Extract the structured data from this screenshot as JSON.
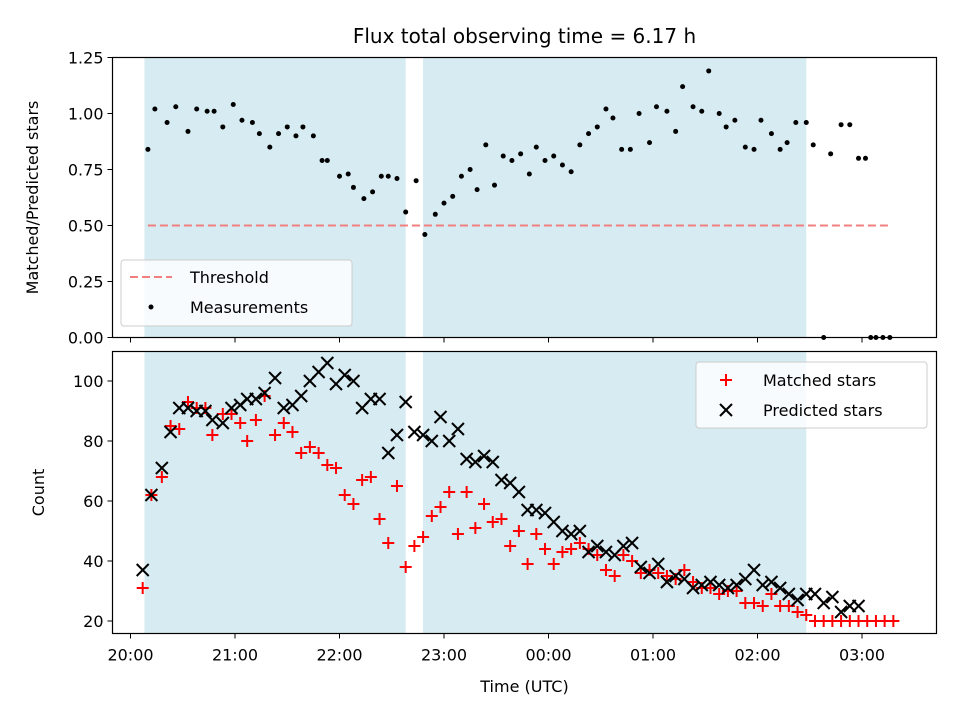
{
  "title": "Flux total observing time = 6.17 h",
  "chart_data": [
    {
      "type": "scatter",
      "ylabel": "Matched/Predicted stars",
      "ylim": [
        0,
        1.25
      ],
      "yticks": [
        "0.00",
        "0.25",
        "0.50",
        "0.75",
        "1.00",
        "1.25"
      ],
      "threshold": 0.5,
      "shaded_intervals": [
        [
          "20:08",
          "22:38"
        ],
        [
          "22:48",
          "02:28"
        ]
      ],
      "legend": {
        "position": "lower-left",
        "threshold_label": "Threshold",
        "measurements_label": "Measurements"
      },
      "series": [
        {
          "name": "Measurements",
          "x": [
            "20:10",
            "20:14",
            "20:21",
            "20:26",
            "20:33",
            "20:38",
            "20:44",
            "20:48",
            "20:53",
            "20:59",
            "21:04",
            "21:10",
            "21:14",
            "21:20",
            "21:25",
            "21:30",
            "21:35",
            "21:39",
            "21:45",
            "21:50",
            "21:53",
            "22:00",
            "22:05",
            "22:08",
            "22:14",
            "22:19",
            "22:24",
            "22:28",
            "22:33",
            "22:38",
            "22:44",
            "22:49",
            "22:55",
            "23:00",
            "23:05",
            "23:10",
            "23:15",
            "23:19",
            "23:24",
            "23:29",
            "23:34",
            "23:39",
            "23:44",
            "23:49",
            "23:53",
            "23:58",
            "24:03",
            "24:08",
            "24:13",
            "24:18",
            "24:23",
            "24:28",
            "24:33",
            "24:37",
            "24:42",
            "24:47",
            "24:52",
            "24:58",
            "25:02",
            "25:08",
            "25:13",
            "25:17",
            "25:23",
            "25:28",
            "25:32",
            "25:38",
            "25:42",
            "25:47",
            "25:53",
            "25:58",
            "26:02",
            "26:08",
            "26:13",
            "26:17",
            "26:22",
            "26:28",
            "26:32",
            "26:38",
            "26:42",
            "26:48",
            "26:53",
            "26:58",
            "27:02",
            "27:05",
            "27:08",
            "27:12",
            "27:16"
          ],
          "y": [
            0.84,
            1.02,
            0.96,
            1.03,
            0.92,
            1.02,
            1.01,
            1.01,
            0.94,
            1.04,
            0.97,
            0.96,
            0.91,
            0.85,
            0.91,
            0.94,
            0.9,
            0.94,
            0.9,
            0.79,
            0.79,
            0.72,
            0.73,
            0.67,
            0.62,
            0.65,
            0.72,
            0.72,
            0.71,
            0.56,
            0.7,
            0.46,
            0.55,
            0.6,
            0.63,
            0.72,
            0.75,
            0.66,
            0.86,
            0.68,
            0.81,
            0.79,
            0.82,
            0.73,
            0.85,
            0.79,
            0.81,
            0.77,
            0.74,
            0.86,
            0.91,
            0.94,
            1.02,
            0.98,
            0.84,
            0.84,
            1.0,
            0.87,
            1.03,
            1.01,
            0.92,
            1.12,
            1.03,
            1.01,
            1.19,
            1.0,
            0.94,
            0.97,
            0.85,
            0.84,
            0.97,
            0.91,
            0.84,
            0.87,
            0.96,
            0.96,
            0.86,
            0.0,
            0.82,
            0.95,
            0.95,
            0.8,
            0.8,
            0.0,
            0.0,
            0.0,
            0.0
          ]
        }
      ]
    },
    {
      "type": "scatter",
      "xlabel": "Time (UTC)",
      "ylabel": "Count",
      "ylim": [
        16,
        110
      ],
      "yticks": [
        "20",
        "40",
        "60",
        "80",
        "100"
      ],
      "xticks": [
        "20:00",
        "21:00",
        "22:00",
        "23:00",
        "00:00",
        "01:00",
        "02:00",
        "03:00"
      ],
      "shaded_intervals": [
        [
          "20:08",
          "22:38"
        ],
        [
          "22:48",
          "02:28"
        ]
      ],
      "legend": {
        "position": "upper-right"
      },
      "series": [
        {
          "name": "Matched stars",
          "color": "#ff0000",
          "marker": "plus",
          "x": [
            "20:07",
            "20:12",
            "20:18",
            "20:23",
            "20:28",
            "20:33",
            "20:38",
            "20:43",
            "20:47",
            "20:53",
            "20:58",
            "21:03",
            "21:07",
            "21:12",
            "21:17",
            "21:23",
            "21:28",
            "21:33",
            "21:38",
            "21:43",
            "21:48",
            "21:53",
            "21:58",
            "22:03",
            "22:08",
            "22:13",
            "22:18",
            "22:23",
            "22:28",
            "22:33",
            "22:38",
            "22:43",
            "22:48",
            "22:53",
            "22:58",
            "23:03",
            "23:08",
            "23:13",
            "23:18",
            "23:23",
            "23:28",
            "23:33",
            "23:38",
            "23:43",
            "23:48",
            "23:53",
            "23:58",
            "24:03",
            "24:08",
            "24:13",
            "24:18",
            "24:23",
            "24:28",
            "24:33",
            "24:38",
            "24:43",
            "24:48",
            "24:53",
            "24:58",
            "25:03",
            "25:08",
            "25:13",
            "25:18",
            "25:23",
            "25:28",
            "25:33",
            "25:38",
            "25:43",
            "25:48",
            "25:53",
            "25:58",
            "26:03",
            "26:08",
            "26:13",
            "26:18",
            "26:23",
            "26:28",
            "26:33",
            "26:38",
            "26:43",
            "26:48",
            "26:53",
            "26:58",
            "27:03",
            "27:08",
            "27:13",
            "27:18"
          ],
          "y": [
            31,
            62,
            68,
            85,
            84,
            93,
            91,
            91,
            82,
            89,
            89,
            86,
            80,
            87,
            95,
            82,
            86,
            83,
            76,
            78,
            76,
            72,
            71,
            62,
            59,
            67,
            68,
            54,
            46,
            65,
            38,
            45,
            48,
            55,
            58,
            63,
            49,
            63,
            51,
            59,
            53,
            54,
            45,
            50,
            39,
            49,
            44,
            39,
            43,
            44,
            46,
            44,
            42,
            37,
            35,
            42,
            40,
            36,
            37,
            36,
            35,
            34,
            37,
            33,
            31,
            31,
            29,
            30,
            30,
            26,
            26,
            25,
            29,
            25,
            25,
            23,
            22,
            20,
            20,
            20,
            20,
            20,
            20,
            20,
            20,
            20,
            20
          ]
        },
        {
          "name": "Predicted stars",
          "color": "#000000",
          "marker": "x",
          "x": [
            "20:07",
            "20:12",
            "20:18",
            "20:23",
            "20:28",
            "20:33",
            "20:38",
            "20:43",
            "20:47",
            "20:53",
            "20:58",
            "21:03",
            "21:07",
            "21:12",
            "21:17",
            "21:23",
            "21:28",
            "21:33",
            "21:38",
            "21:43",
            "21:48",
            "21:53",
            "21:58",
            "22:03",
            "22:08",
            "22:13",
            "22:18",
            "22:23",
            "22:28",
            "22:33",
            "22:38",
            "22:43",
            "22:48",
            "22:53",
            "22:58",
            "23:03",
            "23:08",
            "23:13",
            "23:18",
            "23:23",
            "23:28",
            "23:33",
            "23:38",
            "23:43",
            "23:48",
            "23:53",
            "23:58",
            "24:03",
            "24:08",
            "24:13",
            "24:18",
            "24:23",
            "24:28",
            "24:33",
            "24:38",
            "24:43",
            "24:48",
            "24:53",
            "24:58",
            "25:03",
            "25:08",
            "25:13",
            "25:18",
            "25:23",
            "25:28",
            "25:33",
            "25:38",
            "25:43",
            "25:48",
            "25:53",
            "25:58",
            "26:03",
            "26:08",
            "26:13",
            "26:18",
            "26:23",
            "26:28",
            "26:33",
            "26:38",
            "26:43",
            "26:48",
            "26:53",
            "26:58"
          ],
          "y": [
            37,
            62,
            71,
            83,
            91,
            91,
            90,
            90,
            87,
            86,
            91,
            92,
            94,
            94,
            96,
            101,
            91,
            92,
            95,
            100,
            103,
            106,
            99,
            102,
            100,
            91,
            94,
            94,
            76,
            82,
            93,
            83,
            82,
            80,
            88,
            80,
            84,
            74,
            73,
            75,
            73,
            67,
            66,
            63,
            57,
            57,
            56,
            53,
            50,
            49,
            50,
            43,
            45,
            43,
            42,
            45,
            46,
            38,
            36,
            39,
            33,
            35,
            34,
            31,
            32,
            33,
            32,
            31,
            32,
            34,
            37,
            32,
            33,
            31,
            29,
            27,
            29,
            29,
            26,
            28,
            23,
            25,
            25
          ]
        }
      ]
    }
  ]
}
